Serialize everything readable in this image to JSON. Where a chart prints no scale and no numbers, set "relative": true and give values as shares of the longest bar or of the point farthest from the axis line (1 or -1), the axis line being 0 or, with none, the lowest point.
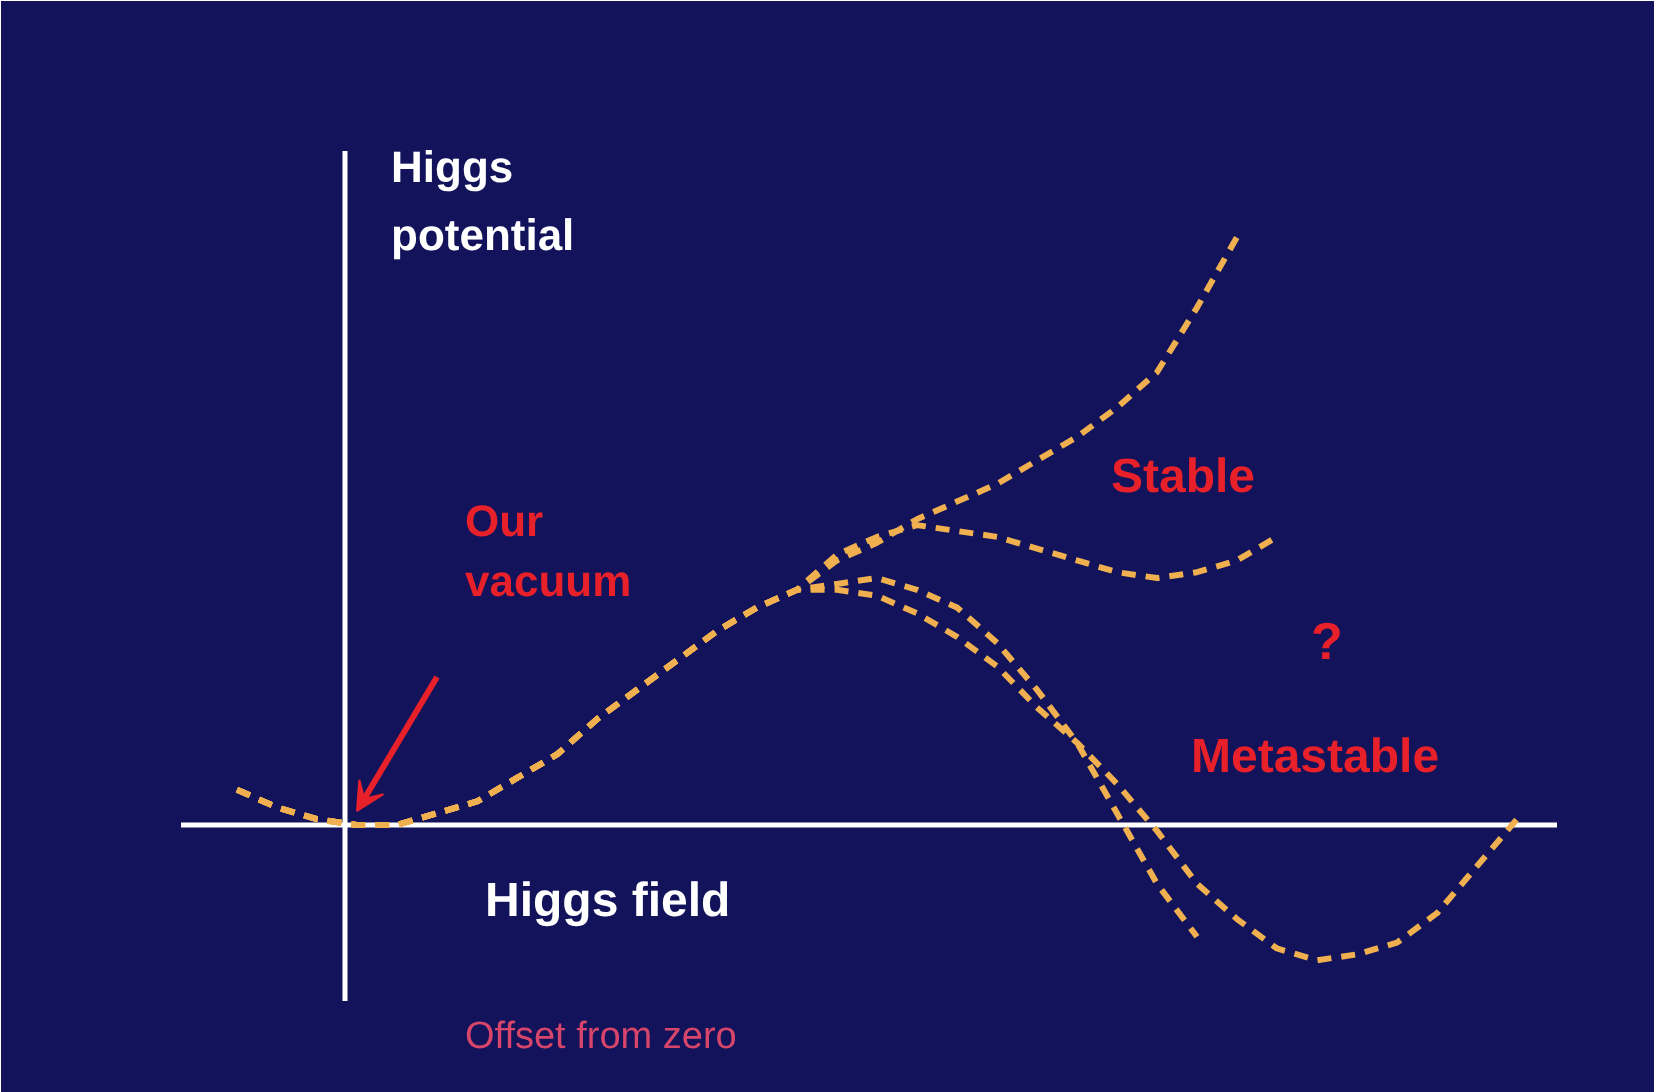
{
  "chart_data": {
    "type": "line",
    "relative": true,
    "line_style": "dashed",
    "xlabel": "Higgs field",
    "ylabel": "Higgs potential",
    "categories": [
      null,
      null,
      null,
      null,
      null,
      null,
      null,
      null,
      null,
      null,
      null,
      null,
      null,
      null,
      null,
      null,
      null,
      null,
      null,
      null,
      null,
      null,
      null,
      null,
      null,
      null,
      null,
      null,
      null,
      null,
      null,
      null,
      null
    ],
    "series": [
      {
        "color": "#f0b050",
        "values": [
          0.06,
          0.03,
          0.01,
          0,
          0.0,
          0.02,
          0.04,
          0.08,
          0.12,
          0.18,
          0.23,
          0.28,
          0.33,
          0.37,
          0.4,
          0.45,
          0.48,
          0.52,
          0.55,
          0.58,
          0.62,
          0.66,
          0.71,
          0.77,
          0.88,
          1.0,
          null,
          null,
          null,
          null,
          null,
          null,
          null
        ]
      },
      {
        "color": "#f0b050",
        "values": [
          0.06,
          0.03,
          0.01,
          0,
          0.0,
          0.02,
          0.04,
          0.08,
          0.12,
          0.18,
          0.23,
          0.28,
          0.33,
          0.37,
          0.4,
          0.46,
          0.49,
          0.51,
          0.5,
          0.49,
          0.47,
          0.45,
          0.43,
          0.42,
          0.43,
          0.45,
          0.49,
          null,
          null,
          null,
          null,
          null,
          null
        ]
      },
      {
        "color": "#f0b050",
        "values": [
          0.06,
          0.03,
          0.01,
          0,
          0.0,
          0.02,
          0.04,
          0.08,
          0.12,
          0.18,
          0.23,
          0.28,
          0.33,
          0.37,
          0.4,
          0.41,
          0.42,
          0.4,
          0.37,
          0.31,
          0.23,
          0.14,
          0.02,
          -0.1,
          -0.19,
          null,
          null,
          null,
          null,
          null,
          null,
          null,
          null
        ]
      },
      {
        "color": "#f0b050",
        "values": [
          0.06,
          0.03,
          0.01,
          0,
          0.0,
          0.02,
          0.04,
          0.08,
          0.12,
          0.18,
          0.23,
          0.28,
          0.33,
          0.37,
          0.4,
          0.4,
          0.39,
          0.36,
          0.32,
          0.27,
          0.2,
          0.14,
          0.07,
          -0.01,
          -0.1,
          -0.16,
          -0.21,
          -0.23,
          -0.22,
          -0.2,
          -0.15,
          -0.07,
          0.01
        ]
      }
    ],
    "annotations": [
      "Our vacuum",
      "Stable",
      "?",
      "Metastable",
      "Offset from zero"
    ]
  }
}
